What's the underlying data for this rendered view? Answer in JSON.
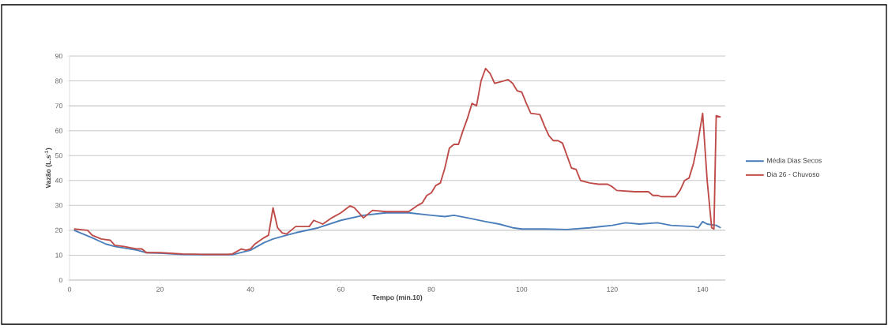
{
  "chart_data": {
    "type": "line",
    "xlabel": "Tempo (min.10)",
    "ylabel": "Vazão (L.s$^{-1}$)",
    "xlim": [
      0,
      145
    ],
    "xticks": [
      0,
      20,
      40,
      60,
      80,
      100,
      120,
      140
    ],
    "ylim": [
      0,
      90
    ],
    "yticks": [
      0,
      10,
      20,
      30,
      40,
      50,
      60,
      70,
      80,
      90
    ],
    "grid": "y",
    "legend": "right",
    "series": [
      {
        "name": "Média Dias Secos",
        "color": "#4a7ebb",
        "x": [
          1,
          5,
          8,
          10,
          15,
          17,
          20,
          25,
          30,
          36,
          40,
          43,
          45,
          48,
          50,
          55,
          60,
          65,
          70,
          75,
          80,
          83,
          85,
          88,
          92,
          95,
          98,
          100,
          105,
          110,
          115,
          120,
          123,
          126,
          130,
          133,
          138,
          139,
          140,
          141,
          143,
          144
        ],
        "values": [
          20,
          17,
          14.5,
          13.5,
          12,
          11,
          10.8,
          10.3,
          10.2,
          10.2,
          12,
          15,
          16.5,
          18,
          19,
          21,
          24,
          26,
          27,
          27,
          26,
          25.5,
          26,
          25,
          23.5,
          22.5,
          21,
          20.5,
          20.5,
          20.3,
          21,
          22,
          23,
          22.5,
          23,
          22,
          21.5,
          21,
          23.5,
          22.5,
          22,
          21
        ]
      },
      {
        "name": "Dia 26 - Chuvoso",
        "color": "#be4b48",
        "x": [
          1,
          4,
          5,
          7,
          9,
          10,
          12,
          15,
          16,
          17,
          20,
          25,
          30,
          35,
          36,
          38,
          39,
          40,
          41,
          43,
          44,
          45,
          46,
          47,
          48,
          50,
          53,
          54,
          56,
          58,
          60,
          62,
          63,
          65,
          67,
          70,
          75,
          77,
          78,
          79,
          80,
          81,
          82,
          83,
          84,
          85,
          86,
          87,
          88,
          89,
          90,
          91,
          92,
          93,
          94,
          96,
          97,
          98,
          99,
          100,
          101,
          102,
          104,
          105,
          106,
          107,
          108,
          109,
          110,
          111,
          112,
          113,
          115,
          117,
          119,
          120,
          121,
          125,
          128,
          129,
          130,
          131,
          134,
          135,
          136,
          137,
          138,
          139,
          140,
          141,
          142,
          142.5,
          143,
          144
        ],
        "values": [
          20.5,
          20,
          18,
          16.5,
          16,
          14,
          13.5,
          12.5,
          12.5,
          11,
          11,
          10.5,
          10.3,
          10.3,
          10.5,
          12.5,
          12,
          12.5,
          14.5,
          17,
          18,
          29,
          21,
          19,
          18.5,
          21.5,
          21.5,
          24,
          22.5,
          25,
          27,
          29.8,
          29,
          25,
          28,
          27.5,
          27.5,
          30,
          31,
          34,
          35,
          38,
          39,
          45,
          53,
          54.5,
          54.5,
          60,
          65,
          71,
          70,
          80,
          85,
          83,
          79,
          80,
          80.5,
          79,
          76,
          75.5,
          71,
          67,
          66.5,
          62,
          58,
          56,
          56,
          55,
          50,
          45,
          44.5,
          40,
          39,
          38.5,
          38.5,
          37.5,
          36,
          35.5,
          35.5,
          34,
          34,
          33.5,
          33.5,
          36,
          40,
          41,
          47,
          56,
          67,
          40,
          21,
          20.5,
          66,
          65.5
        ]
      }
    ]
  }
}
